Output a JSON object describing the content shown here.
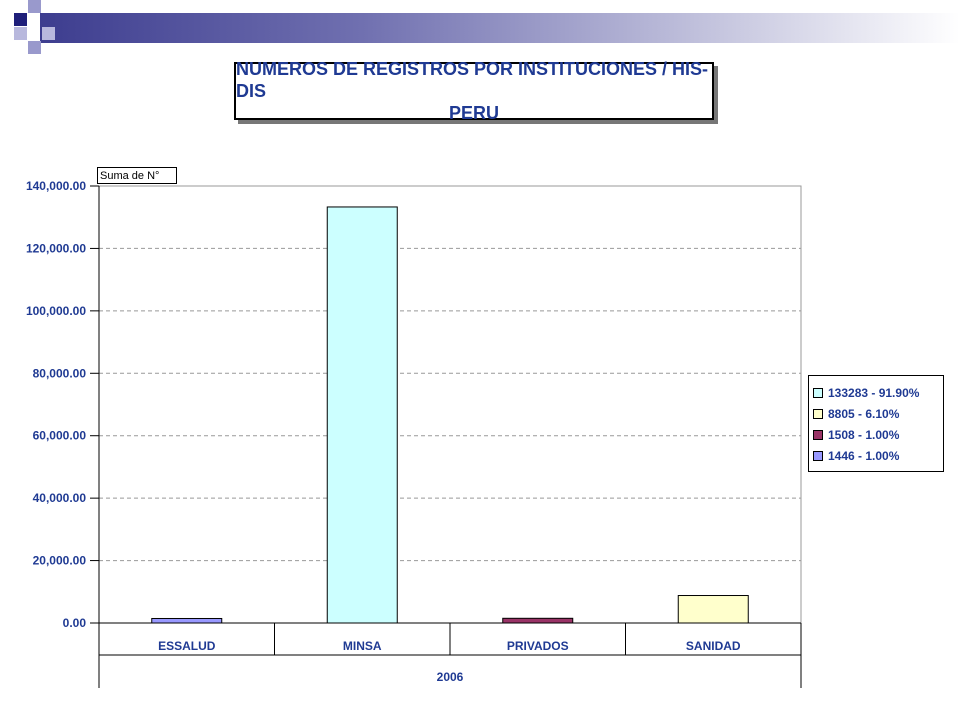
{
  "title": {
    "line1": "NUMEROS DE REGISTROS POR INSTITUCIONES / HIS-DIS",
    "line2": "PERU"
  },
  "field_label": "Suma de N°",
  "colors": {
    "header_dark": "#1f1f7a",
    "header_light": "#9999cc",
    "text": "#1f3a93",
    "grid": "#999999"
  },
  "chart_data": {
    "type": "bar",
    "categories": [
      "ESSALUD",
      "MINSA",
      "PRIVADOS",
      "SANIDAD"
    ],
    "group_label": "2006",
    "values": [
      1446,
      133283,
      1508,
      8805
    ],
    "bar_colors": [
      "#9999ff",
      "#ccffff",
      "#993366",
      "#ffffcc"
    ],
    "yticks": [
      "0.00",
      "20,000.00",
      "40,000.00",
      "60,000.00",
      "80,000.00",
      "100,000.00",
      "120,000.00",
      "140,000.00"
    ],
    "ylim": [
      0,
      140000
    ],
    "grid": true,
    "legend_position": "right",
    "legend": [
      {
        "label": "133283 - 91.90%",
        "color": "#ccffff"
      },
      {
        "label": "8805 - 6.10%",
        "color": "#ffffcc"
      },
      {
        "label": "1508 - 1.00%",
        "color": "#993366"
      },
      {
        "label": "1446 - 1.00%",
        "color": "#9999ff"
      }
    ]
  }
}
